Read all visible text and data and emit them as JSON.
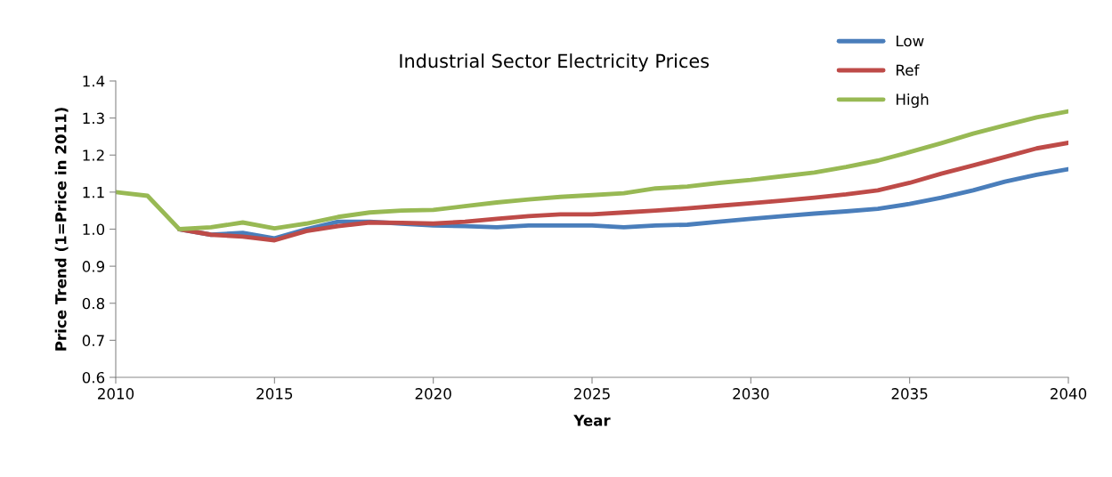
{
  "chart_data": {
    "type": "line",
    "title": "Industrial Sector Electricity Prices",
    "xlabel": "Year",
    "ylabel": "Price Trend (1=Price in 2011)",
    "x": [
      2010,
      2011,
      2012,
      2013,
      2014,
      2015,
      2016,
      2017,
      2018,
      2019,
      2020,
      2021,
      2022,
      2023,
      2024,
      2025,
      2026,
      2027,
      2028,
      2029,
      2030,
      2031,
      2032,
      2033,
      2034,
      2035,
      2036,
      2037,
      2038,
      2039,
      2040
    ],
    "series": [
      {
        "name": "Low",
        "color": "#4a7ebb",
        "values": [
          null,
          null,
          1.0,
          0.985,
          0.99,
          0.975,
          1.0,
          1.02,
          1.02,
          1.015,
          1.01,
          1.008,
          1.005,
          1.01,
          1.01,
          1.01,
          1.005,
          1.01,
          1.012,
          1.02,
          1.028,
          1.035,
          1.042,
          1.048,
          1.055,
          1.068,
          1.085,
          1.105,
          1.128,
          1.147,
          1.162
        ]
      },
      {
        "name": "Ref",
        "color": "#be4b48",
        "values": [
          null,
          null,
          1.0,
          0.985,
          0.98,
          0.97,
          0.995,
          1.008,
          1.018,
          1.017,
          1.015,
          1.02,
          1.028,
          1.035,
          1.04,
          1.04,
          1.045,
          1.05,
          1.056,
          1.063,
          1.07,
          1.077,
          1.085,
          1.094,
          1.105,
          1.125,
          1.15,
          1.172,
          1.195,
          1.218,
          1.233
        ]
      },
      {
        "name": "High",
        "color": "#98b954",
        "values": [
          1.1,
          1.09,
          1.0,
          1.005,
          1.018,
          1.002,
          1.015,
          1.033,
          1.045,
          1.05,
          1.052,
          1.062,
          1.072,
          1.08,
          1.087,
          1.092,
          1.097,
          1.11,
          1.115,
          1.125,
          1.133,
          1.143,
          1.153,
          1.168,
          1.185,
          1.208,
          1.232,
          1.258,
          1.28,
          1.302,
          1.318
        ]
      }
    ],
    "xlim": [
      2010,
      2040
    ],
    "xticks": [
      2010,
      2015,
      2020,
      2025,
      2030,
      2035,
      2040
    ],
    "ylim": [
      0.6,
      1.4
    ],
    "yticks": [
      {
        "value": 0.6,
        "label": "0.6"
      },
      {
        "value": 0.7,
        "label": "0.7"
      },
      {
        "value": 0.8,
        "label": "0.8"
      },
      {
        "value": 0.9,
        "label": "0.9"
      },
      {
        "value": 1.0,
        "label": "1.0"
      },
      {
        "value": 1.1,
        "label": "1.1"
      },
      {
        "value": 1.2,
        "label": "1.2"
      },
      {
        "value": 1.3,
        "label": "1.3"
      },
      {
        "value": 1.4,
        "label": "1.4"
      }
    ],
    "grid": false,
    "legend": "top right",
    "marker": "none",
    "line_style": "solid"
  }
}
